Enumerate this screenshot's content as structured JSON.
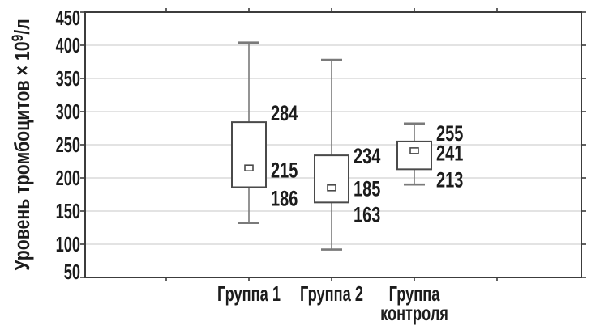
{
  "figure": {
    "background": "#ffffff"
  },
  "chart_data": {
    "type": "boxplot",
    "title": "",
    "ylabel": {
      "text": "Уровень тромбоцитов × 10",
      "superscript": "9",
      "suffix": "/л",
      "full": "Уровень тромбоцитов × 10⁹/л"
    },
    "xlabel": "",
    "ylim": [
      50,
      450
    ],
    "ytick_step": 50,
    "yticks": [
      450,
      400,
      350,
      300,
      250,
      200,
      150,
      100,
      50
    ],
    "grid": "horizontal",
    "legend": "none",
    "categories": [
      {
        "label_lines": [
          "Группа 1"
        ]
      },
      {
        "label_lines": [
          "Группа 2"
        ]
      },
      {
        "label_lines": [
          "Группа",
          "контроля"
        ]
      }
    ],
    "series": [
      {
        "name": "Группа 1",
        "whisker_low": 132,
        "q1": 186,
        "median": 215,
        "q3": 284,
        "whisker_high": 404,
        "value_labels": {
          "q3": "284",
          "median": "215",
          "q1": "186"
        }
      },
      {
        "name": "Группа 2",
        "whisker_low": 92,
        "q1": 163,
        "median": 185,
        "q3": 234,
        "whisker_high": 378,
        "value_labels": {
          "q3": "234",
          "median": "185",
          "q1": "163"
        }
      },
      {
        "name": "Группа контроля",
        "whisker_low": 190,
        "q1": 213,
        "median": 241,
        "q3": 255,
        "whisker_high": 282,
        "value_labels": {
          "q3": "255",
          "median": "241",
          "q1": "213"
        }
      }
    ],
    "colors": {
      "text": "#1c1c1c",
      "frame": "#3c3c3c",
      "grid": "#d2d2d2",
      "box_stroke": "#4a4a4a",
      "box_fill": "#ffffff",
      "whisker": "#7a7a7a"
    }
  }
}
